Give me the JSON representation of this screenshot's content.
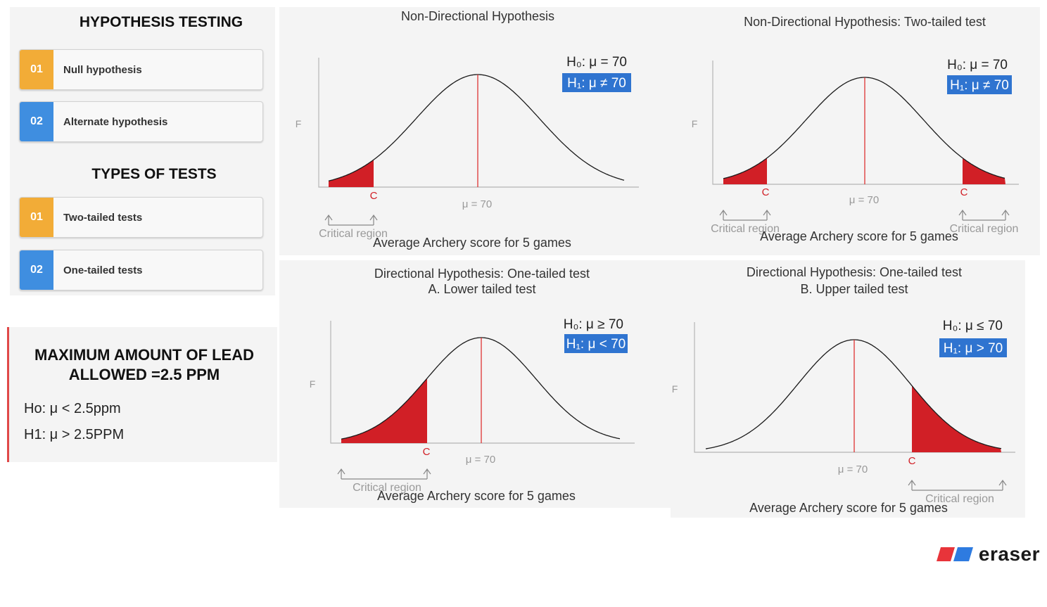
{
  "sidebar": {
    "hypothesis_title": "HYPOTHESIS TESTING",
    "hypothesis_items": [
      {
        "num": "01",
        "label": "Null hypothesis"
      },
      {
        "num": "02",
        "label": "Alternate hypothesis"
      }
    ],
    "tests_title": "TYPES OF TESTS",
    "tests_items": [
      {
        "num": "01",
        "label": "Two-tailed tests"
      },
      {
        "num": "02",
        "label": "One-tailed tests"
      }
    ]
  },
  "lead_card": {
    "title": "MAXIMUM AMOUNT OF LEAD ALLOWED =2.5 PPM",
    "h0": "Ho: μ < 2.5ppm",
    "h1": "H1: μ > 2.5PPM"
  },
  "charts": [
    {
      "title": "Non-Directional Hypothesis",
      "subtitle": "",
      "h0": "H₀: μ = 70",
      "h1": "H₁: μ ≠ 70",
      "f_label": "F",
      "c_label": "C",
      "mu_label": "μ = 70",
      "region_label": "Critical region",
      "xlabel": "Average Archery score for 5 games"
    },
    {
      "title": "Non-Directional Hypothesis: Two-tailed test",
      "subtitle": "",
      "h0": "H₀: μ = 70",
      "h1": "H₁: μ ≠ 70",
      "f_label": "F",
      "c_label": "C",
      "mu_label": "μ = 70",
      "region_label": "Critical region",
      "xlabel": "Average Archery score for 5 games"
    },
    {
      "title": "Directional Hypothesis: One-tailed test",
      "subtitle": "A. Lower tailed test",
      "h0": "H₀: μ ≥ 70",
      "h1": "H₁: μ < 70",
      "f_label": "F",
      "c_label": "C",
      "mu_label": "μ = 70",
      "region_label": "Critical region",
      "xlabel": "Average Archery score for 5 games"
    },
    {
      "title": "Directional Hypothesis: One-tailed test",
      "subtitle": "B. Upper tailed test",
      "h0": "H₀: μ ≤ 70",
      "h1": "H₁: μ > 70",
      "f_label": "F",
      "c_label": "C",
      "mu_label": "μ = 70",
      "region_label": "Critical region",
      "xlabel": "Average Archery score for 5 games"
    }
  ],
  "brand": {
    "name": "eraser"
  },
  "colors": {
    "orange": "#f2ac37",
    "blue": "#3f8ee0",
    "red": "#d11f26",
    "h1_box": "#2f74d0"
  }
}
